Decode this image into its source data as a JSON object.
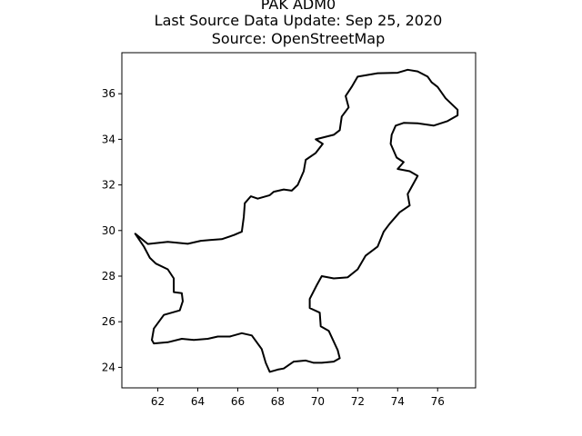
{
  "title": {
    "line1": "PAK ADM0",
    "line2": "Last Source Data Update: Sep 25, 2020",
    "line3": "Source: OpenStreetMap"
  },
  "colors": {
    "background": "#ffffff",
    "outline": "#000000"
  },
  "chart_data": {
    "type": "map",
    "xlim": [
      60.2,
      77.9
    ],
    "ylim": [
      23.1,
      37.8
    ],
    "grid": false,
    "x_ticks": [
      62,
      64,
      66,
      68,
      70,
      72,
      74,
      76
    ],
    "y_ticks": [
      24,
      26,
      28,
      30,
      32,
      34,
      36
    ],
    "x_tick_labels": [
      "62",
      "64",
      "66",
      "68",
      "70",
      "72",
      "74",
      "76"
    ],
    "y_tick_labels": [
      "24",
      "26",
      "28",
      "30",
      "32",
      "34",
      "36"
    ],
    "boundary": [
      [
        60.87,
        29.86
      ],
      [
        61.5,
        29.41
      ],
      [
        62.5,
        29.5
      ],
      [
        63.5,
        29.42
      ],
      [
        64.15,
        29.55
      ],
      [
        64.6,
        29.58
      ],
      [
        65.2,
        29.62
      ],
      [
        65.8,
        29.8
      ],
      [
        66.2,
        29.95
      ],
      [
        66.3,
        30.6
      ],
      [
        66.35,
        31.2
      ],
      [
        66.65,
        31.5
      ],
      [
        67.0,
        31.4
      ],
      [
        67.6,
        31.55
      ],
      [
        67.8,
        31.7
      ],
      [
        68.3,
        31.8
      ],
      [
        68.7,
        31.75
      ],
      [
        69.0,
        32.0
      ],
      [
        69.3,
        32.6
      ],
      [
        69.4,
        33.1
      ],
      [
        69.9,
        33.4
      ],
      [
        70.25,
        33.8
      ],
      [
        69.9,
        34.0
      ],
      [
        70.8,
        34.2
      ],
      [
        71.1,
        34.4
      ],
      [
        71.2,
        35.0
      ],
      [
        71.55,
        35.4
      ],
      [
        71.4,
        35.9
      ],
      [
        71.7,
        36.3
      ],
      [
        72.0,
        36.75
      ],
      [
        73.0,
        36.9
      ],
      [
        74.0,
        36.92
      ],
      [
        74.5,
        37.05
      ],
      [
        75.0,
        36.98
      ],
      [
        75.5,
        36.75
      ],
      [
        75.7,
        36.5
      ],
      [
        76.0,
        36.3
      ],
      [
        76.4,
        35.8
      ],
      [
        77.0,
        35.3
      ],
      [
        77.0,
        35.05
      ],
      [
        76.5,
        34.8
      ],
      [
        75.8,
        34.6
      ],
      [
        75.0,
        34.7
      ],
      [
        74.3,
        34.72
      ],
      [
        73.9,
        34.6
      ],
      [
        73.7,
        34.2
      ],
      [
        73.65,
        33.8
      ],
      [
        73.95,
        33.2
      ],
      [
        74.3,
        33.0
      ],
      [
        74.0,
        32.7
      ],
      [
        74.6,
        32.6
      ],
      [
        75.0,
        32.4
      ],
      [
        74.75,
        32.0
      ],
      [
        74.5,
        31.6
      ],
      [
        74.6,
        31.1
      ],
      [
        74.1,
        30.8
      ],
      [
        73.6,
        30.3
      ],
      [
        73.3,
        29.95
      ],
      [
        73.0,
        29.3
      ],
      [
        72.4,
        28.9
      ],
      [
        72.0,
        28.3
      ],
      [
        71.5,
        27.95
      ],
      [
        70.8,
        27.9
      ],
      [
        70.2,
        28.0
      ],
      [
        69.95,
        27.6
      ],
      [
        69.6,
        27.0
      ],
      [
        69.6,
        26.6
      ],
      [
        70.1,
        26.4
      ],
      [
        70.15,
        25.8
      ],
      [
        70.55,
        25.6
      ],
      [
        71.0,
        24.75
      ],
      [
        71.1,
        24.4
      ],
      [
        70.8,
        24.25
      ],
      [
        70.2,
        24.2
      ],
      [
        69.8,
        24.2
      ],
      [
        69.4,
        24.3
      ],
      [
        68.8,
        24.25
      ],
      [
        68.3,
        23.95
      ],
      [
        68.0,
        23.9
      ],
      [
        67.6,
        23.8
      ],
      [
        67.4,
        24.2
      ],
      [
        67.2,
        24.8
      ],
      [
        66.7,
        25.4
      ],
      [
        66.2,
        25.5
      ],
      [
        65.6,
        25.35
      ],
      [
        65.0,
        25.35
      ],
      [
        64.5,
        25.25
      ],
      [
        63.8,
        25.2
      ],
      [
        63.2,
        25.25
      ],
      [
        62.5,
        25.1
      ],
      [
        61.8,
        25.05
      ],
      [
        61.7,
        25.2
      ],
      [
        61.8,
        25.7
      ],
      [
        62.3,
        26.3
      ],
      [
        63.1,
        26.5
      ],
      [
        63.25,
        26.9
      ],
      [
        63.2,
        27.25
      ],
      [
        62.8,
        27.3
      ],
      [
        62.8,
        27.9
      ],
      [
        62.5,
        28.3
      ],
      [
        61.9,
        28.55
      ],
      [
        61.6,
        28.8
      ],
      [
        61.3,
        29.3
      ],
      [
        60.87,
        29.86
      ]
    ]
  }
}
